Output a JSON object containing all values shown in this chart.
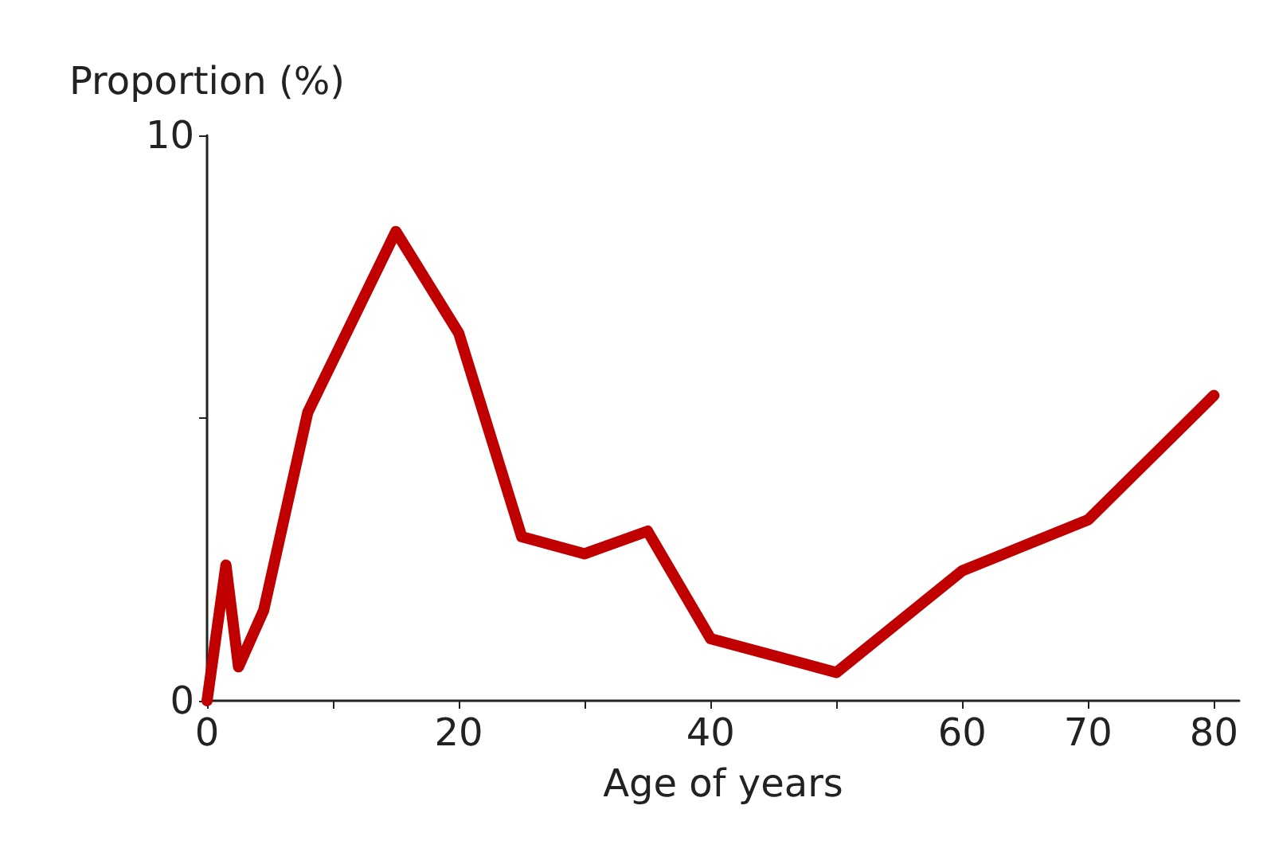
{
  "chart_data": {
    "type": "line",
    "xlabel": "Age of years",
    "ylabel": "Proportion (%)",
    "x": [
      0,
      1.5,
      2.5,
      4.5,
      8,
      15,
      20,
      25,
      30,
      35,
      40,
      50,
      60,
      70,
      80
    ],
    "series": [
      {
        "color": "#c00000",
        "values": [
          0,
          2.4,
          0.6,
          1.6,
          5.1,
          8.3,
          6.5,
          2.9,
          2.6,
          3.0,
          1.1,
          0.5,
          2.3,
          3.2,
          5.4
        ]
      }
    ],
    "xlim": [
      0,
      82
    ],
    "xticks": [
      0,
      {
        "value": 10,
        "label": null
      },
      20,
      {
        "value": 30,
        "label": null
      },
      40,
      {
        "value": 50,
        "label": null
      },
      60,
      70,
      80
    ],
    "ylim": [
      0,
      10
    ],
    "yticks": [
      0,
      {
        "value": 5,
        "label": null
      },
      10
    ],
    "grid": false,
    "marker": "none",
    "line_style": "solid"
  }
}
